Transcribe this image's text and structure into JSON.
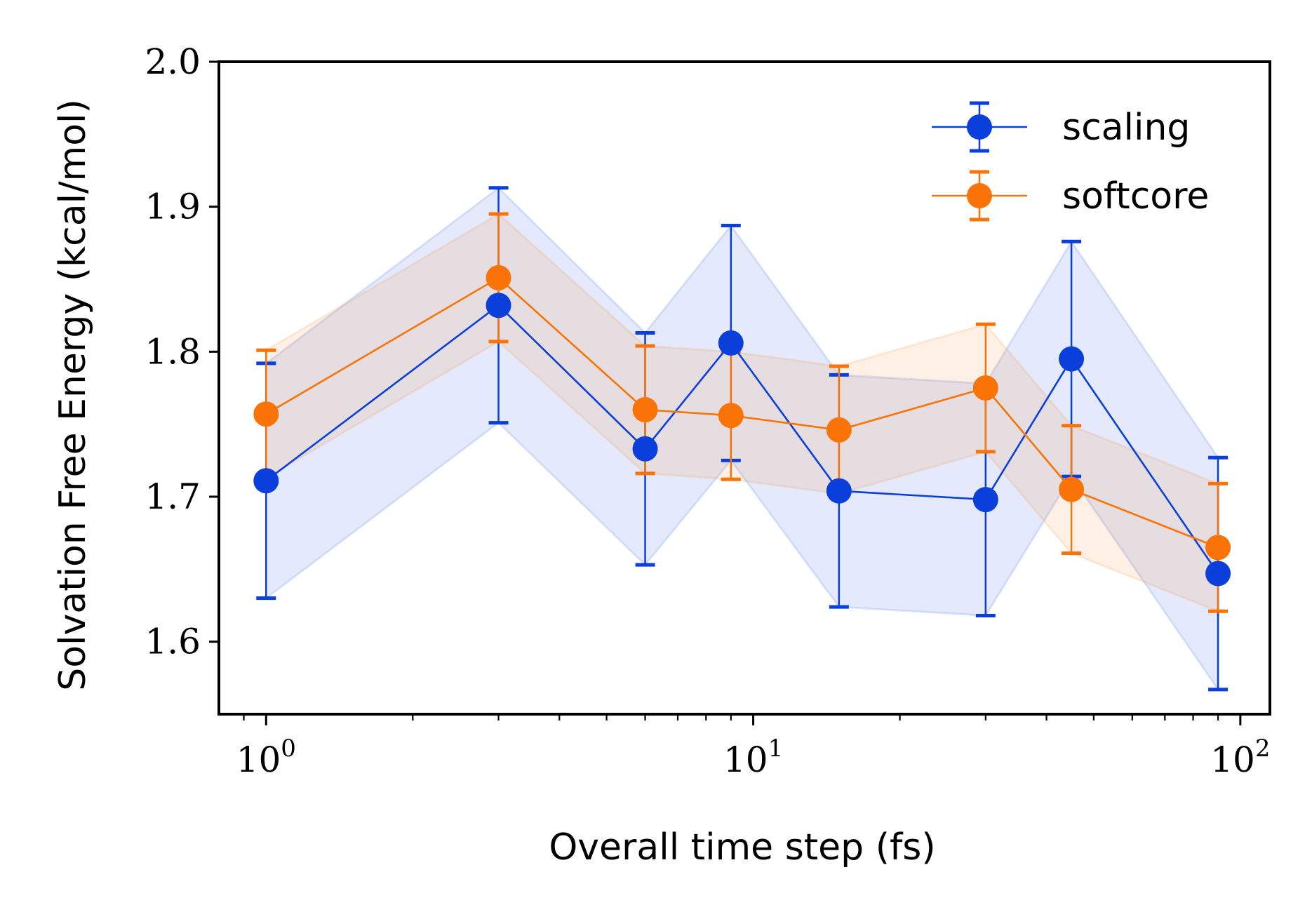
{
  "chart_data": {
    "type": "line",
    "xscale": "log",
    "xlim": [
      0.8,
      115
    ],
    "ylim": [
      1.55,
      2.0
    ],
    "xlabel": "Overall time step (fs)",
    "ylabel": "Solvation Free Energy (kcal/mol)",
    "x_ticks": [
      {
        "value": 1,
        "base": "10",
        "exp": "0"
      },
      {
        "value": 10,
        "base": "10",
        "exp": "1"
      },
      {
        "value": 100,
        "base": "10",
        "exp": "2"
      }
    ],
    "y_ticks": [
      {
        "value": 1.6,
        "label": "1.6"
      },
      {
        "value": 1.7,
        "label": "1.7"
      },
      {
        "value": 1.8,
        "label": "1.8"
      },
      {
        "value": 1.9,
        "label": "1.9"
      },
      {
        "value": 2.0,
        "label": "2.0"
      }
    ],
    "legend_position": "top-right",
    "grid": false,
    "series": [
      {
        "name": "scaling",
        "color": "#0a3fdc",
        "x": [
          1,
          3,
          6,
          9,
          15,
          30,
          45,
          90
        ],
        "y": [
          1.711,
          1.832,
          1.733,
          1.806,
          1.704,
          1.698,
          1.795,
          1.647
        ],
        "error": [
          0.081,
          0.081,
          0.08,
          0.081,
          0.08,
          0.08,
          0.081,
          0.08
        ]
      },
      {
        "name": "softcore",
        "color": "#f97306",
        "x": [
          1,
          3,
          6,
          9,
          15,
          30,
          45,
          90
        ],
        "y": [
          1.757,
          1.851,
          1.76,
          1.756,
          1.746,
          1.775,
          1.705,
          1.665
        ],
        "error": [
          0.044,
          0.044,
          0.044,
          0.044,
          0.044,
          0.044,
          0.044,
          0.044
        ]
      }
    ]
  }
}
